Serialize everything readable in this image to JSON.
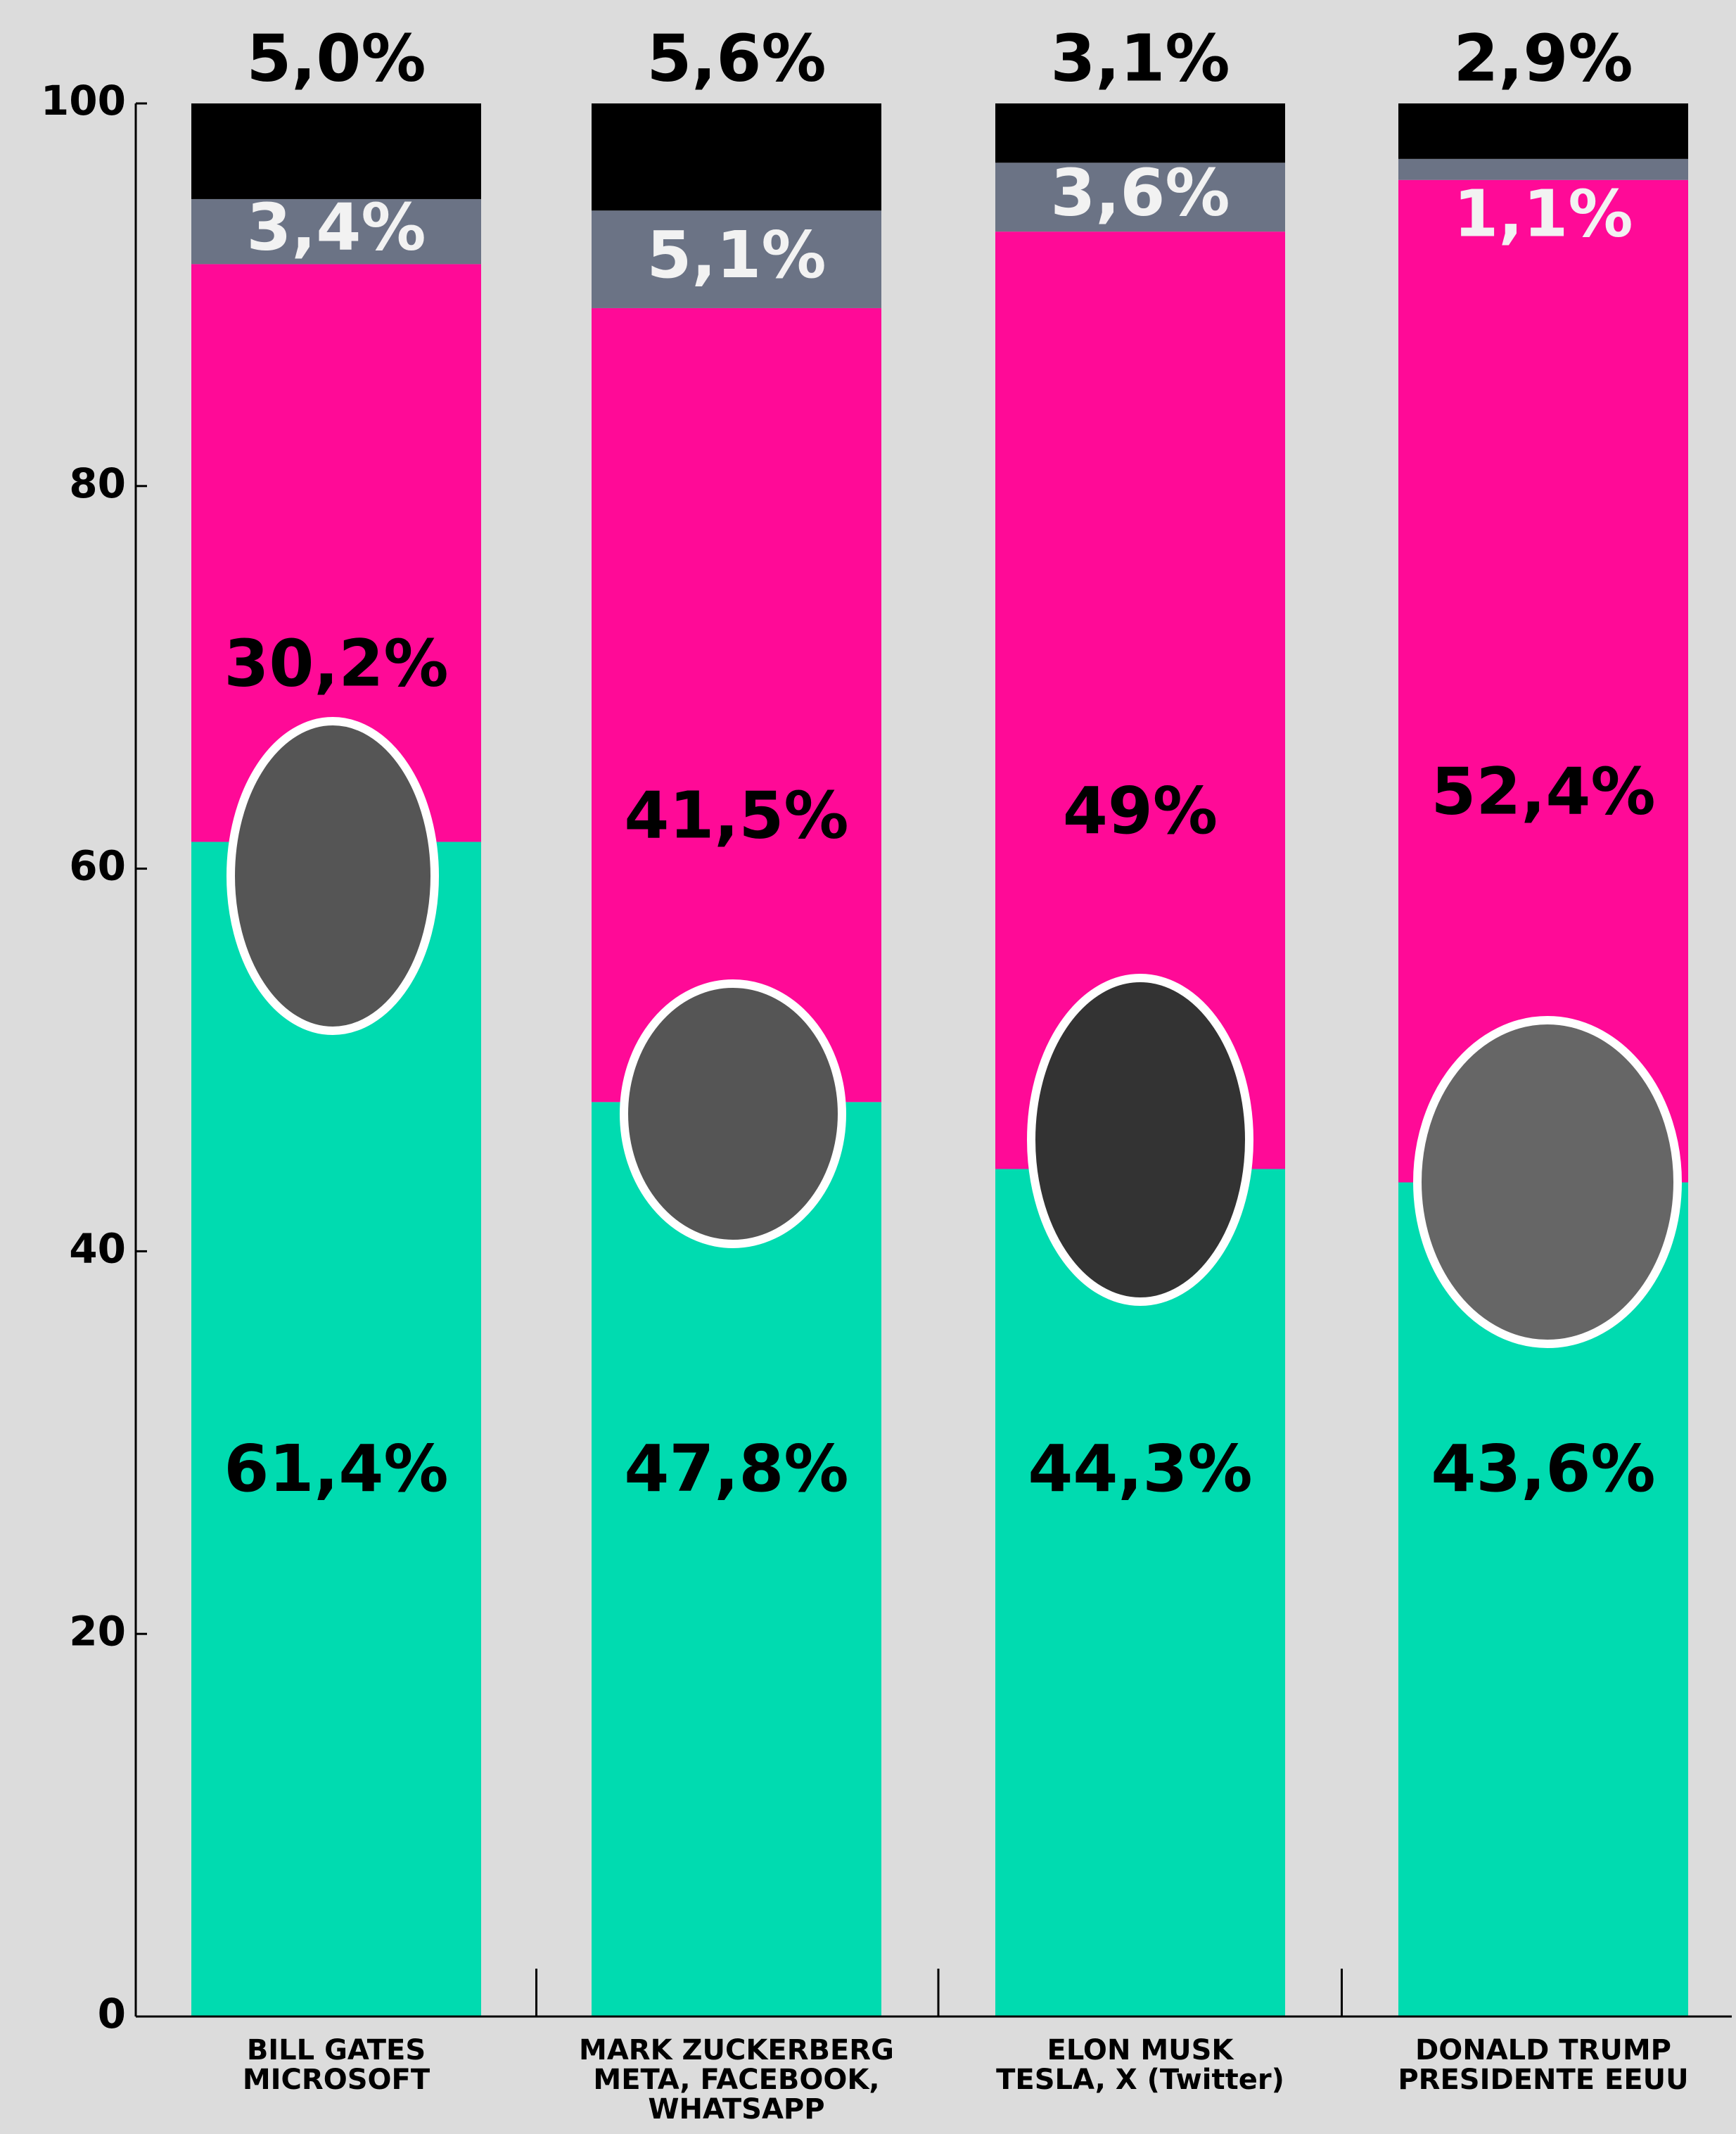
{
  "chart_data": {
    "type": "stacked_bar",
    "categories": [
      [
        "BILL GATES",
        "MICROSOFT"
      ],
      [
        "MARK ZUCKERBERG",
        "META, FACEBOOK,",
        "WHATSAPP"
      ],
      [
        "ELON MUSK",
        "TESLA, X (Twitter)"
      ],
      [
        "DONALD TRUMP",
        "PRESIDENTE EEUU"
      ]
    ],
    "series": [
      {
        "color": "#00dbb0",
        "values": [
          61.4,
          47.8,
          44.3,
          43.6
        ],
        "value_labels": [
          "61,4%",
          "47,8%",
          "44,3%",
          "43,6%"
        ]
      },
      {
        "color": "#ff0a97",
        "values": [
          30.2,
          41.5,
          49,
          52.4
        ],
        "value_labels": [
          "30,2%",
          "41,5%",
          "49%",
          "52,4%"
        ]
      },
      {
        "color": "#6b7385",
        "values": [
          3.4,
          5.1,
          3.6,
          1.1
        ],
        "value_labels": [
          "3,4%",
          "5,1%",
          "3,6%",
          "1,1%"
        ]
      },
      {
        "color": "#000000",
        "values": [
          5.0,
          5.6,
          3.1,
          2.9
        ],
        "value_labels": [
          "5,0%",
          "5,6%",
          "3,1%",
          "2,9%"
        ]
      }
    ],
    "ylim": [
      0,
      100
    ],
    "yticks": [
      0,
      20,
      40,
      60,
      80,
      100
    ]
  }
}
